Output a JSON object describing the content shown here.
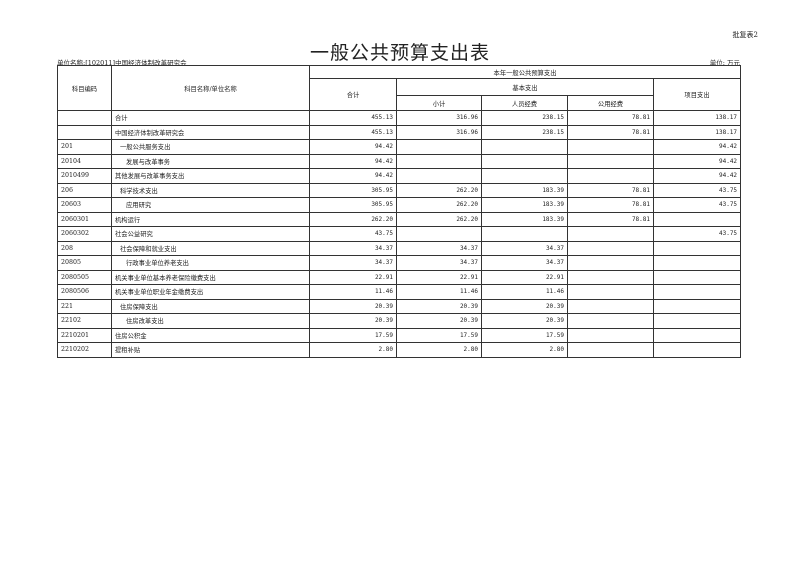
{
  "corner_label": "批复表2",
  "title": "一般公共预算支出表",
  "unit_name": "单位名称:[102011]中国经济体制改革研究会",
  "unit": "单位: 万元",
  "headers": {
    "code": "科目编码",
    "name": "科目名称/单位名称",
    "group": "本年一般公共预算支出",
    "total": "合计",
    "basic": "基本支出",
    "subtotal": "小计",
    "personnel": "人员经费",
    "public": "公用经费",
    "project": "项目支出"
  },
  "rows": [
    {
      "code": "",
      "name": "合计",
      "level": 0,
      "total": "455.13",
      "subtotal": "316.96",
      "personnel": "238.15",
      "public": "78.81",
      "project": "138.17"
    },
    {
      "code": "",
      "name": "中国经济体制改革研究会",
      "level": 0,
      "total": "455.13",
      "subtotal": "316.96",
      "personnel": "238.15",
      "public": "78.81",
      "project": "138.17"
    },
    {
      "code": "201",
      "name": "一般公共服务支出",
      "level": 1,
      "total": "94.42",
      "subtotal": "",
      "personnel": "",
      "public": "",
      "project": "94.42"
    },
    {
      "code": "20104",
      "name": "发展与改革事务",
      "level": 2,
      "total": "94.42",
      "subtotal": "",
      "personnel": "",
      "public": "",
      "project": "94.42"
    },
    {
      "code": "2010499",
      "name": "其他发展与改革事务支出",
      "level": 0,
      "total": "94.42",
      "subtotal": "",
      "personnel": "",
      "public": "",
      "project": "94.42"
    },
    {
      "code": "206",
      "name": "科学技术支出",
      "level": 1,
      "total": "305.95",
      "subtotal": "262.20",
      "personnel": "183.39",
      "public": "78.81",
      "project": "43.75"
    },
    {
      "code": "20603",
      "name": "应用研究",
      "level": 2,
      "total": "305.95",
      "subtotal": "262.20",
      "personnel": "183.39",
      "public": "78.81",
      "project": "43.75"
    },
    {
      "code": "2060301",
      "name": "机构运行",
      "level": 0,
      "total": "262.20",
      "subtotal": "262.20",
      "personnel": "183.39",
      "public": "78.81",
      "project": ""
    },
    {
      "code": "2060302",
      "name": "社会公益研究",
      "level": 0,
      "total": "43.75",
      "subtotal": "",
      "personnel": "",
      "public": "",
      "project": "43.75"
    },
    {
      "code": "208",
      "name": "社会保障和就业支出",
      "level": 1,
      "total": "34.37",
      "subtotal": "34.37",
      "personnel": "34.37",
      "public": "",
      "project": ""
    },
    {
      "code": "20805",
      "name": "行政事业单位养老支出",
      "level": 2,
      "total": "34.37",
      "subtotal": "34.37",
      "personnel": "34.37",
      "public": "",
      "project": ""
    },
    {
      "code": "2080505",
      "name": "机关事业单位基本养老保险缴费支出",
      "level": 0,
      "total": "22.91",
      "subtotal": "22.91",
      "personnel": "22.91",
      "public": "",
      "project": ""
    },
    {
      "code": "2080506",
      "name": "机关事业单位职业年金缴费支出",
      "level": 0,
      "total": "11.46",
      "subtotal": "11.46",
      "personnel": "11.46",
      "public": "",
      "project": ""
    },
    {
      "code": "221",
      "name": "住房保障支出",
      "level": 1,
      "total": "20.39",
      "subtotal": "20.39",
      "personnel": "20.39",
      "public": "",
      "project": ""
    },
    {
      "code": "22102",
      "name": "住房改革支出",
      "level": 2,
      "total": "20.39",
      "subtotal": "20.39",
      "personnel": "20.39",
      "public": "",
      "project": ""
    },
    {
      "code": "2210201",
      "name": "住房公积金",
      "level": 0,
      "total": "17.59",
      "subtotal": "17.59",
      "personnel": "17.59",
      "public": "",
      "project": ""
    },
    {
      "code": "2210202",
      "name": "提租补贴",
      "level": 0,
      "total": "2.80",
      "subtotal": "2.80",
      "personnel": "2.80",
      "public": "",
      "project": ""
    }
  ]
}
